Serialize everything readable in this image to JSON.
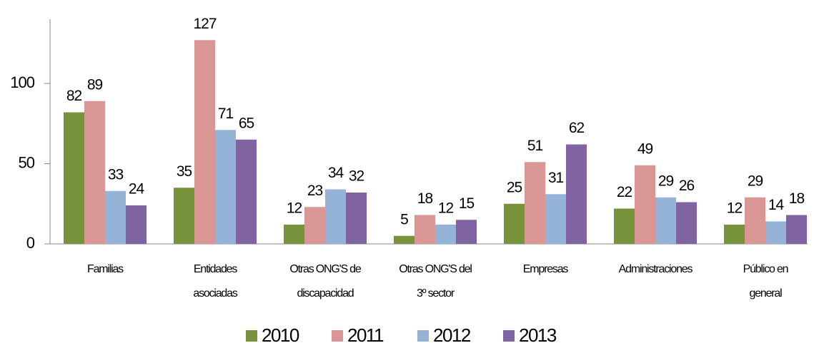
{
  "chart_data": {
    "type": "bar",
    "categories": [
      "Familias",
      "Entidades\nasociadas",
      "Otras ONG'S de\ndiscapacidad",
      "Otras ONG'S del\n3º sector",
      "Empresas",
      "Administraciones",
      "Público en\ngeneral"
    ],
    "series": [
      {
        "name": "2010",
        "color": "#77933c",
        "values": [
          82,
          35,
          12,
          5,
          25,
          22,
          12
        ]
      },
      {
        "name": "2011",
        "color": "#d99694",
        "values": [
          89,
          127,
          23,
          18,
          51,
          49,
          29
        ]
      },
      {
        "name": "2012",
        "color": "#95b3d7",
        "values": [
          33,
          71,
          34,
          12,
          31,
          29,
          14
        ]
      },
      {
        "name": "2013",
        "color": "#8064a2",
        "values": [
          24,
          65,
          32,
          15,
          62,
          26,
          18
        ]
      }
    ],
    "ylim": [
      0,
      140
    ],
    "yticks": [
      0,
      50,
      100
    ],
    "grid": false,
    "legend": "bottom"
  }
}
